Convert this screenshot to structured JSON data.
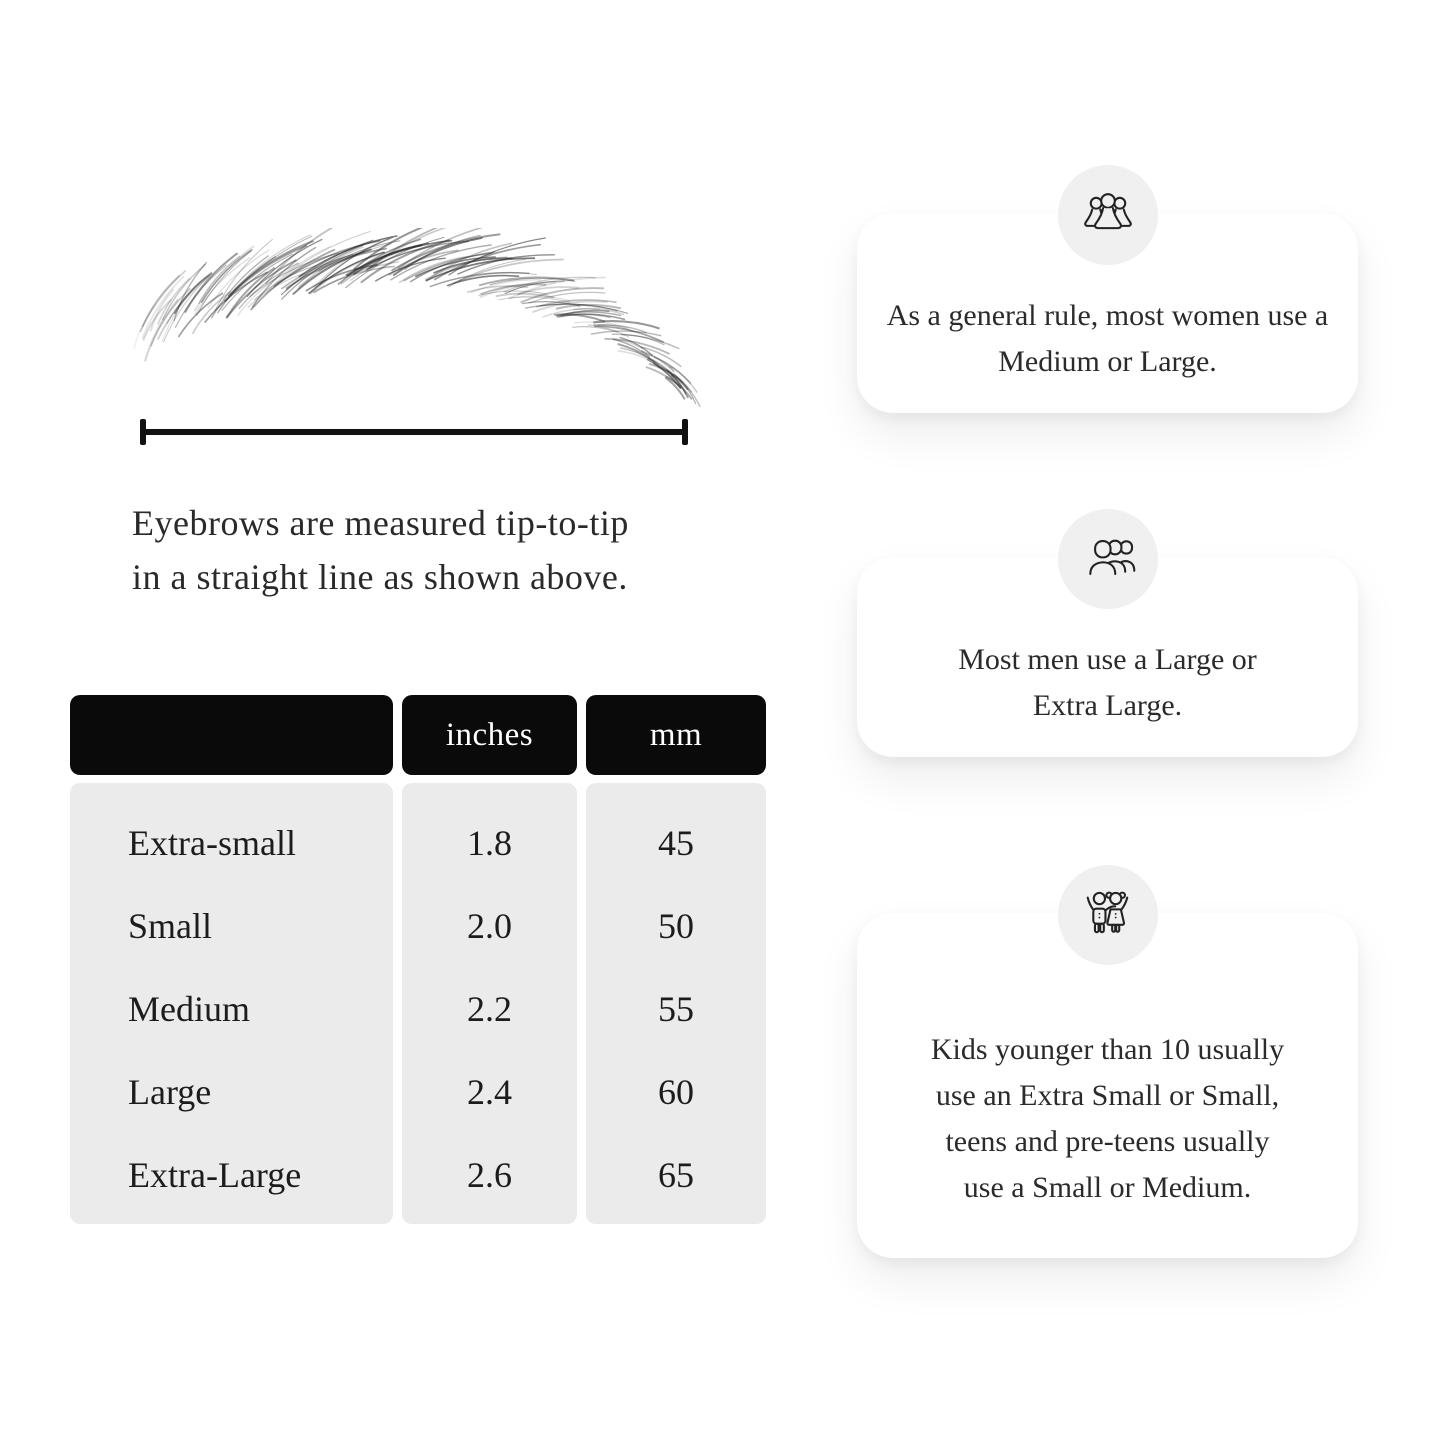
{
  "page": {
    "background": "#ffffff"
  },
  "measurement_diagram": {
    "illustration": "eyebrow-sketch",
    "line_color": "#111111",
    "caption_line1": "Eyebrows are measured tip-to-tip",
    "caption_line2": "in a straight line as shown above."
  },
  "size_table": {
    "columns": [
      "",
      "inches",
      "mm"
    ],
    "rows": [
      {
        "name": "Extra-small",
        "inches": "1.8",
        "mm": "45"
      },
      {
        "name": "Small",
        "inches": "2.0",
        "mm": "50"
      },
      {
        "name": "Medium",
        "inches": "2.2",
        "mm": "55"
      },
      {
        "name": "Large",
        "inches": "2.4",
        "mm": "60"
      },
      {
        "name": "Extra-Large",
        "inches": "2.6",
        "mm": "65"
      }
    ],
    "header_bg": "#0a0a0a",
    "header_text_color": "#ffffff",
    "body_bg": "#ebebeb"
  },
  "info_cards": [
    {
      "icon": "women-group-icon",
      "text": "As a general rule, most women use a Medium or Large."
    },
    {
      "icon": "men-group-icon",
      "text": "Most men use a Large or Extra Large."
    },
    {
      "icon": "kids-icon",
      "text": "Kids younger than 10 usually use an Extra Small or Small, teens and pre-teens usually use a Small or Medium."
    }
  ]
}
